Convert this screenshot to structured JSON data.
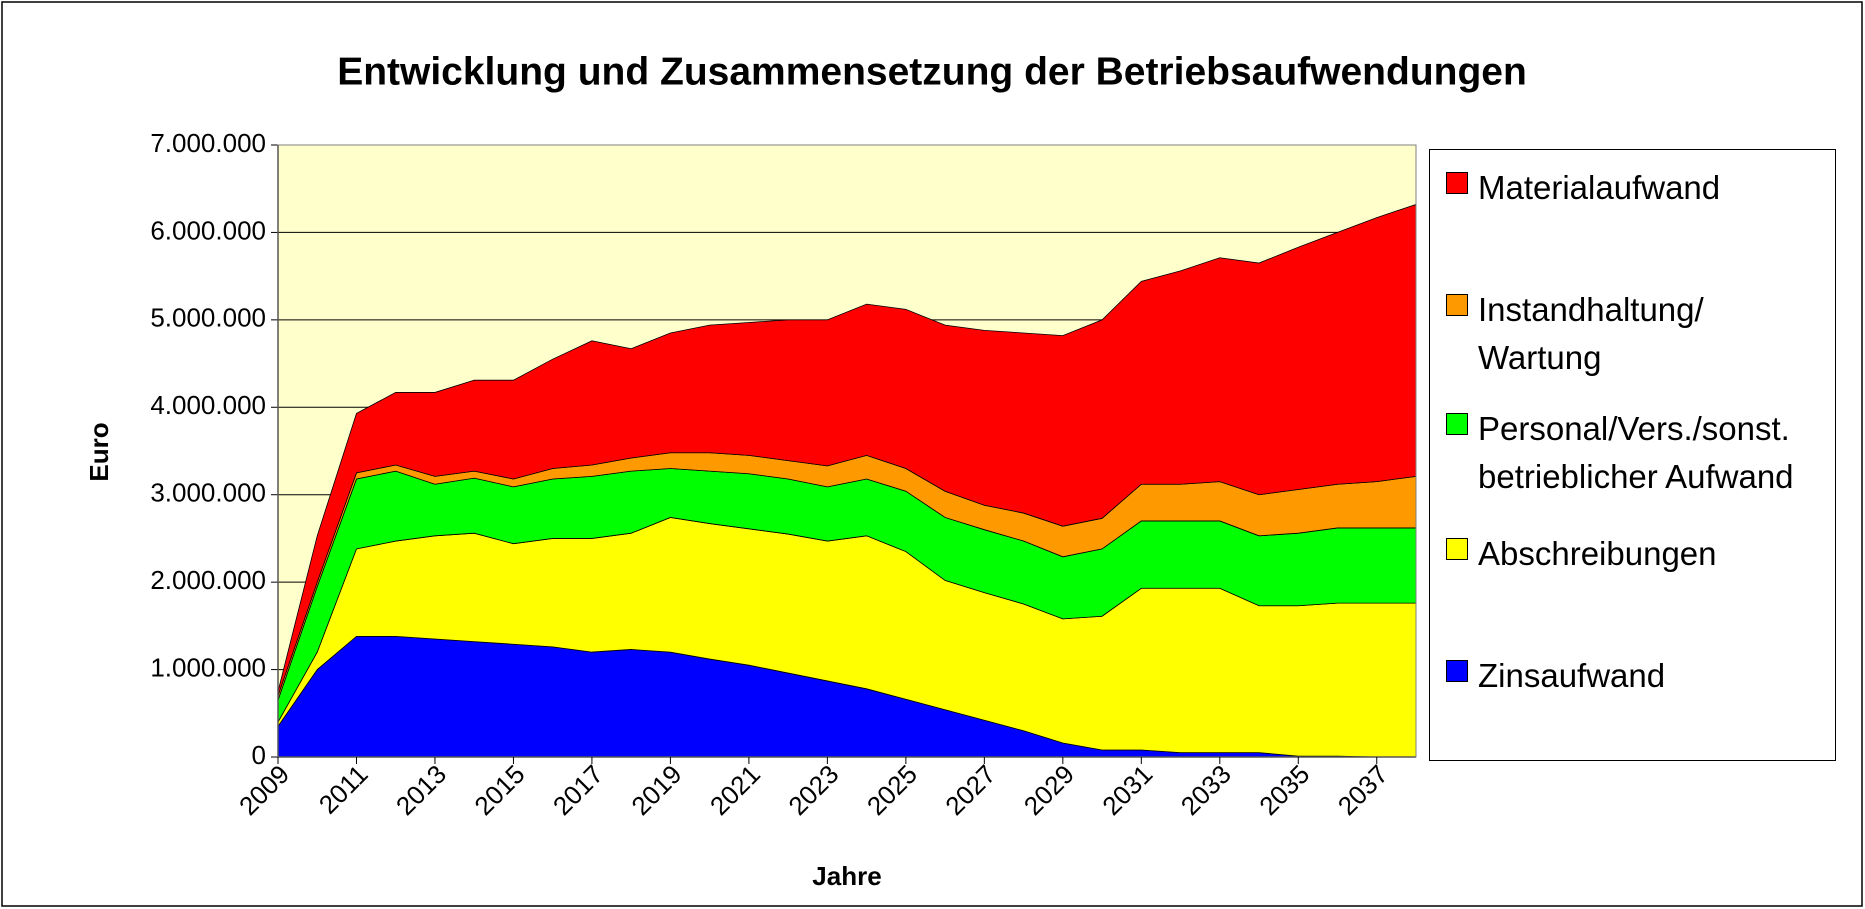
{
  "chart_data": {
    "type": "stacked-area",
    "title": "Entwicklung und Zusammensetzung der Betriebsaufwendungen",
    "x_label": "Jahre",
    "y_label": "Euro",
    "x": [
      2009,
      2010,
      2011,
      2012,
      2013,
      2014,
      2015,
      2016,
      2017,
      2018,
      2019,
      2020,
      2021,
      2022,
      2023,
      2024,
      2025,
      2026,
      2027,
      2028,
      2029,
      2030,
      2031,
      2032,
      2033,
      2034,
      2035,
      2036,
      2037,
      2038
    ],
    "xlim": [
      2009,
      2038
    ],
    "xticks": [
      2009,
      2011,
      2013,
      2015,
      2017,
      2019,
      2021,
      2023,
      2025,
      2027,
      2029,
      2031,
      2033,
      2035,
      2037
    ],
    "ylim": [
      0,
      7000000
    ],
    "yticks": [
      0,
      {
        "value": 1000000,
        "label": "1.000.000"
      },
      {
        "value": 2000000,
        "label": "2.000.000"
      },
      {
        "value": 3000000,
        "label": "3.000.000"
      },
      {
        "value": 4000000,
        "label": "4.000.000"
      },
      {
        "value": 5000000,
        "label": "5.000.000"
      },
      {
        "value": 6000000,
        "label": "6.000.000"
      },
      {
        "value": 7000000,
        "label": "7.000.000"
      }
    ],
    "grid": true,
    "legend": "right",
    "series": [
      {
        "name": "Zinsaufwand",
        "color": "#0000ff",
        "values": [
          350000,
          1000000,
          1380000,
          1380000,
          1350000,
          1320000,
          1290000,
          1260000,
          1200000,
          1230000,
          1200000,
          1120000,
          1050000,
          960000,
          870000,
          780000,
          660000,
          540000,
          420000,
          300000,
          160000,
          80000,
          80000,
          50000,
          50000,
          50000,
          10000,
          10000,
          0,
          0
        ]
      },
      {
        "name": "Abschreibungen",
        "color": "#ffff00",
        "values": [
          50000,
          200000,
          1000000,
          1090000,
          1180000,
          1240000,
          1150000,
          1240000,
          1300000,
          1330000,
          1540000,
          1550000,
          1560000,
          1590000,
          1600000,
          1750000,
          1690000,
          1480000,
          1460000,
          1450000,
          1420000,
          1530000,
          1850000,
          1880000,
          1880000,
          1680000,
          1720000,
          1750000,
          1760000,
          1760000
        ]
      },
      {
        "name": "Personal/Vers./sonst. betrieblicher Aufwand",
        "color": "#00ff00",
        "values": [
          250000,
          750000,
          800000,
          800000,
          590000,
          630000,
          650000,
          680000,
          710000,
          710000,
          560000,
          600000,
          630000,
          630000,
          620000,
          650000,
          690000,
          720000,
          720000,
          720000,
          710000,
          770000,
          770000,
          770000,
          770000,
          800000,
          830000,
          860000,
          860000,
          860000
        ]
      },
      {
        "name": "Instandhaltung/ Wartung",
        "color": "#ff9900",
        "values": [
          50000,
          50000,
          70000,
          70000,
          90000,
          80000,
          90000,
          120000,
          130000,
          150000,
          180000,
          210000,
          210000,
          210000,
          240000,
          270000,
          260000,
          300000,
          280000,
          320000,
          350000,
          350000,
          420000,
          420000,
          450000,
          470000,
          500000,
          500000,
          530000,
          590000
        ]
      },
      {
        "name": "Materialaufwand",
        "color": "#ff0000",
        "values": [
          50000,
          530000,
          680000,
          830000,
          960000,
          1040000,
          1130000,
          1250000,
          1420000,
          1250000,
          1370000,
          1460000,
          1520000,
          1610000,
          1670000,
          1730000,
          1820000,
          1900000,
          2000000,
          2060000,
          2180000,
          2270000,
          2320000,
          2440000,
          2560000,
          2650000,
          2770000,
          2880000,
          3020000,
          3110000
        ]
      }
    ]
  }
}
